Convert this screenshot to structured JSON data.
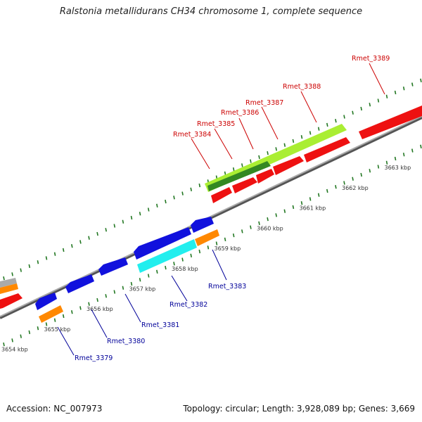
{
  "title": "Ralstonia metallidurans CH34 chromosome 1, complete sequence",
  "footer": {
    "accession": "Accession: NC_007973",
    "summary": "Topology: circular; Length: 3,928,089 bp; Genes: 3,669"
  },
  "ticks": [
    {
      "label": "3654 kbp",
      "kbp": 3654
    },
    {
      "label": "3655 kbp",
      "kbp": 3655
    },
    {
      "label": "3656 kbp",
      "kbp": 3656
    },
    {
      "label": "3657 kbp",
      "kbp": 3657
    },
    {
      "label": "3658 kbp",
      "kbp": 3658
    },
    {
      "label": "3659 kbp",
      "kbp": 3659
    },
    {
      "label": "3660 kbp",
      "kbp": 3660
    },
    {
      "label": "3661 kbp",
      "kbp": 3661
    },
    {
      "label": "3662 kbp",
      "kbp": 3662
    },
    {
      "label": "3663 kbp",
      "kbp": 3663
    }
  ],
  "colors": {
    "forward_label": "#cc0000",
    "reverse_label": "#000099",
    "red": "#ee1111",
    "lime": "#aaee33",
    "darkgreen": "#338822",
    "blue": "#1111dd",
    "cyan": "#22eeee",
    "orange": "#ff8800",
    "grey": "#aaaaaa",
    "tick": "#227722",
    "backbone": "#888888"
  },
  "forward_labels": [
    {
      "name": "Rmet_3384"
    },
    {
      "name": "Rmet_3385"
    },
    {
      "name": "Rmet_3386"
    },
    {
      "name": "Rmet_3387"
    },
    {
      "name": "Rmet_3388"
    },
    {
      "name": "Rmet_3389"
    }
  ],
  "reverse_labels": [
    {
      "name": "Rmet_3379"
    },
    {
      "name": "Rmet_3380"
    },
    {
      "name": "Rmet_3381"
    },
    {
      "name": "Rmet_3382"
    },
    {
      "name": "Rmet_3383"
    }
  ]
}
